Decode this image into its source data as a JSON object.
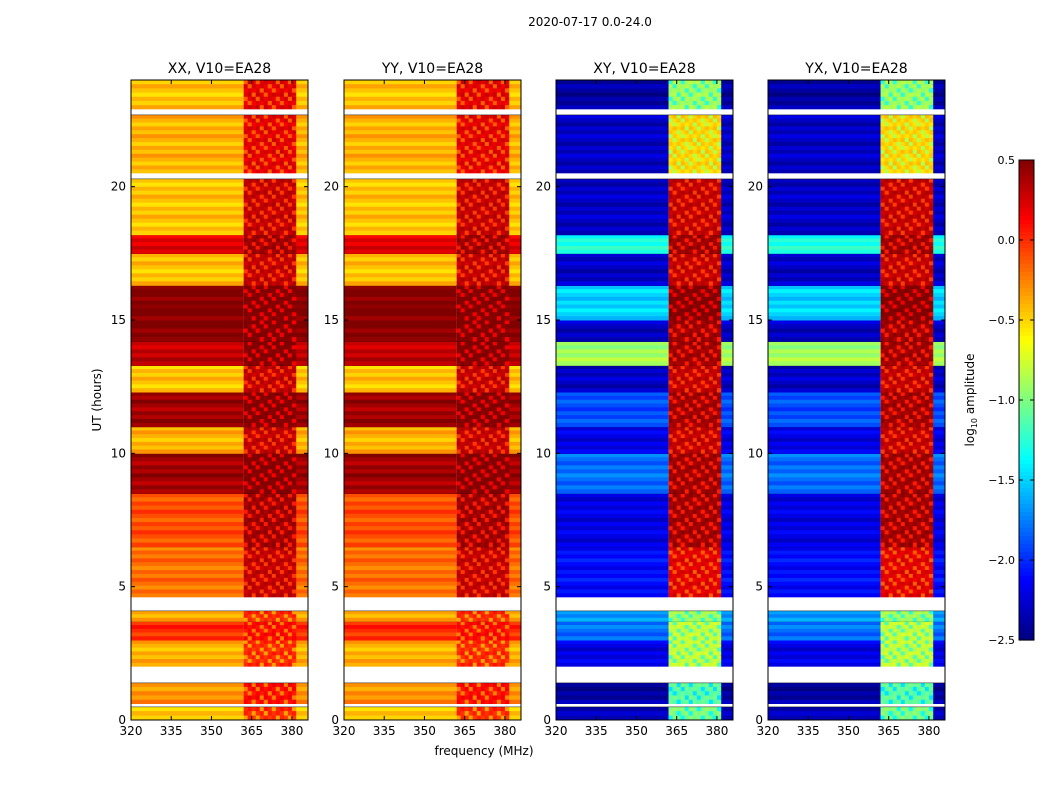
{
  "chart_data": {
    "type": "heatmap",
    "title": "2020-07-17 0.0-24.0",
    "xlabel": "frequency (MHz)",
    "ylabel": "UT (hours)",
    "xlim": [
      320,
      386
    ],
    "ylim": [
      0,
      24
    ],
    "xticks": [
      "320",
      "335",
      "350",
      "365",
      "380"
    ],
    "xtick_values": [
      320,
      335,
      350,
      365,
      380
    ],
    "yticks": [
      "0",
      "5",
      "10",
      "15",
      "20"
    ],
    "ytick_values": [
      0,
      5,
      10,
      15,
      20
    ],
    "rfi_band_mhz": [
      362,
      381
    ],
    "panels": [
      {
        "title": "XX, V10=EA28",
        "kind": "parallel"
      },
      {
        "title": "YY, V10=EA28",
        "kind": "parallel"
      },
      {
        "title": "XY, V10=EA28",
        "kind": "cross"
      },
      {
        "title": "YX, V10=EA28",
        "kind": "cross"
      }
    ],
    "bands_columns": [
      "t_start",
      "t_end",
      "parallel_level",
      "cross_level",
      "parallel_rfi_level",
      "cross_rfi_level"
    ],
    "bands": [
      [
        0.0,
        0.5,
        -0.45,
        -2.3,
        0.0,
        -1.0
      ],
      [
        0.6,
        1.4,
        -0.3,
        -2.4,
        0.1,
        -1.1
      ],
      [
        2.0,
        3.0,
        -0.4,
        -2.2,
        0.0,
        -0.8
      ],
      [
        3.0,
        3.7,
        0.0,
        -1.8,
        0.1,
        -0.8
      ],
      [
        3.7,
        4.1,
        -0.4,
        -1.7,
        0.0,
        -0.9
      ],
      [
        4.6,
        6.5,
        -0.2,
        -2.1,
        0.3,
        0.2
      ],
      [
        6.5,
        8.5,
        -0.1,
        -2.2,
        0.4,
        0.4
      ],
      [
        8.5,
        10.0,
        0.4,
        -1.8,
        0.5,
        0.4
      ],
      [
        10.0,
        11.0,
        -0.4,
        -2.2,
        0.3,
        0.3
      ],
      [
        11.0,
        12.3,
        0.4,
        -1.9,
        0.5,
        0.4
      ],
      [
        12.3,
        13.3,
        -0.45,
        -2.3,
        0.3,
        0.3
      ],
      [
        13.3,
        14.2,
        0.3,
        -0.9,
        0.5,
        0.4
      ],
      [
        14.2,
        15.0,
        0.5,
        -2.3,
        0.5,
        0.4
      ],
      [
        15.0,
        16.3,
        0.5,
        -1.5,
        0.5,
        0.5
      ],
      [
        16.3,
        17.5,
        -0.45,
        -2.3,
        0.3,
        0.3
      ],
      [
        17.5,
        18.2,
        0.2,
        -1.3,
        0.4,
        0.4
      ],
      [
        18.2,
        20.3,
        -0.45,
        -2.3,
        0.3,
        0.3
      ],
      [
        20.5,
        22.7,
        -0.4,
        -2.3,
        0.2,
        -0.5
      ],
      [
        22.9,
        24.0,
        -0.45,
        -2.4,
        0.2,
        -0.9
      ]
    ],
    "flagged_intervals_hours": [
      [
        0.5,
        0.6
      ],
      [
        1.4,
        2.0
      ],
      [
        4.1,
        4.6
      ],
      [
        20.3,
        20.5
      ],
      [
        22.7,
        22.9
      ]
    ],
    "colorbar": {
      "label": "log10 amplitude",
      "label_main": "log",
      "label_sub": "10",
      "label_rest": " amplitude",
      "colormap": "jet",
      "range": [
        -2.5,
        0.5
      ],
      "ticks": [
        "0.5",
        "0.0",
        "−0.5",
        "−1.0",
        "−1.5",
        "−2.0",
        "−2.5"
      ],
      "tick_values": [
        0.5,
        0.0,
        -0.5,
        -1.0,
        -1.5,
        -2.0,
        -2.5
      ]
    }
  }
}
